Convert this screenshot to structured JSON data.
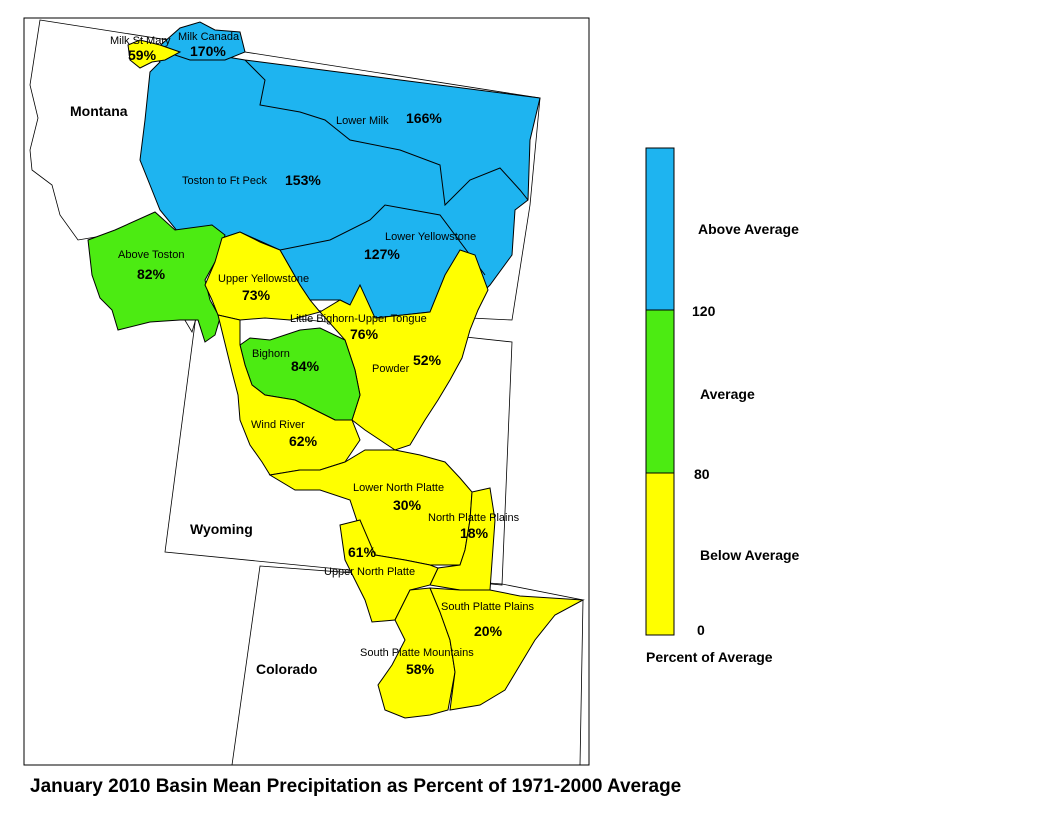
{
  "title": "January 2010 Basin Mean Precipitation as Percent of 1971-2000 Average",
  "colors": {
    "above": "#1EB4F0",
    "average": "#4CEB12",
    "below": "#FFFF00",
    "outline": "#000000"
  },
  "states": [
    {
      "id": "montana",
      "name": "Montana"
    },
    {
      "id": "wyoming",
      "name": "Wyoming"
    },
    {
      "id": "colorado",
      "name": "Colorado"
    }
  ],
  "basins": [
    {
      "id": "milk-st-mary",
      "name": "Milk St Mary",
      "pct": "59%",
      "category": "below"
    },
    {
      "id": "milk-canada",
      "name": "Milk Canada",
      "pct": "170%",
      "category": "above"
    },
    {
      "id": "lower-milk",
      "name": "Lower Milk",
      "pct": "166%",
      "category": "above"
    },
    {
      "id": "toston-ft-peck",
      "name": "Toston to Ft Peck",
      "pct": "153%",
      "category": "above"
    },
    {
      "id": "lower-yellowstone",
      "name": "Lower Yellowstone",
      "pct": "127%",
      "category": "above"
    },
    {
      "id": "above-toston",
      "name": "Above Toston",
      "pct": "82%",
      "category": "average"
    },
    {
      "id": "upper-yellowstone",
      "name": "Upper Yellowstone",
      "pct": "73%",
      "category": "below"
    },
    {
      "id": "little-bighorn",
      "name": "Little Bighorn-Upper Tongue",
      "pct": "76%",
      "category": "below"
    },
    {
      "id": "powder",
      "name": "Powder",
      "pct": "52%",
      "category": "below"
    },
    {
      "id": "bighorn",
      "name": "Bighorn",
      "pct": "84%",
      "category": "average"
    },
    {
      "id": "wind-river",
      "name": "Wind River",
      "pct": "62%",
      "category": "below"
    },
    {
      "id": "lower-north-platte",
      "name": "Lower North Platte",
      "pct": "30%",
      "category": "below"
    },
    {
      "id": "north-platte-plains",
      "name": "North Platte Plains",
      "pct": "18%",
      "category": "below"
    },
    {
      "id": "upper-north-platte",
      "name": "Upper North Platte",
      "pct": "61%",
      "category": "below"
    },
    {
      "id": "south-platte-plains",
      "name": "South Platte Plains",
      "pct": "20%",
      "category": "below"
    },
    {
      "id": "south-platte-mountains",
      "name": "South Platte Mountains",
      "pct": "58%",
      "category": "below"
    }
  ],
  "legend": {
    "title": "Percent of Average",
    "classes": [
      {
        "label": "Above Average",
        "category": "above"
      },
      {
        "label": "Average",
        "category": "average"
      },
      {
        "label": "Below Average",
        "category": "below"
      }
    ],
    "breaks": [
      "120",
      "80",
      "0"
    ]
  }
}
